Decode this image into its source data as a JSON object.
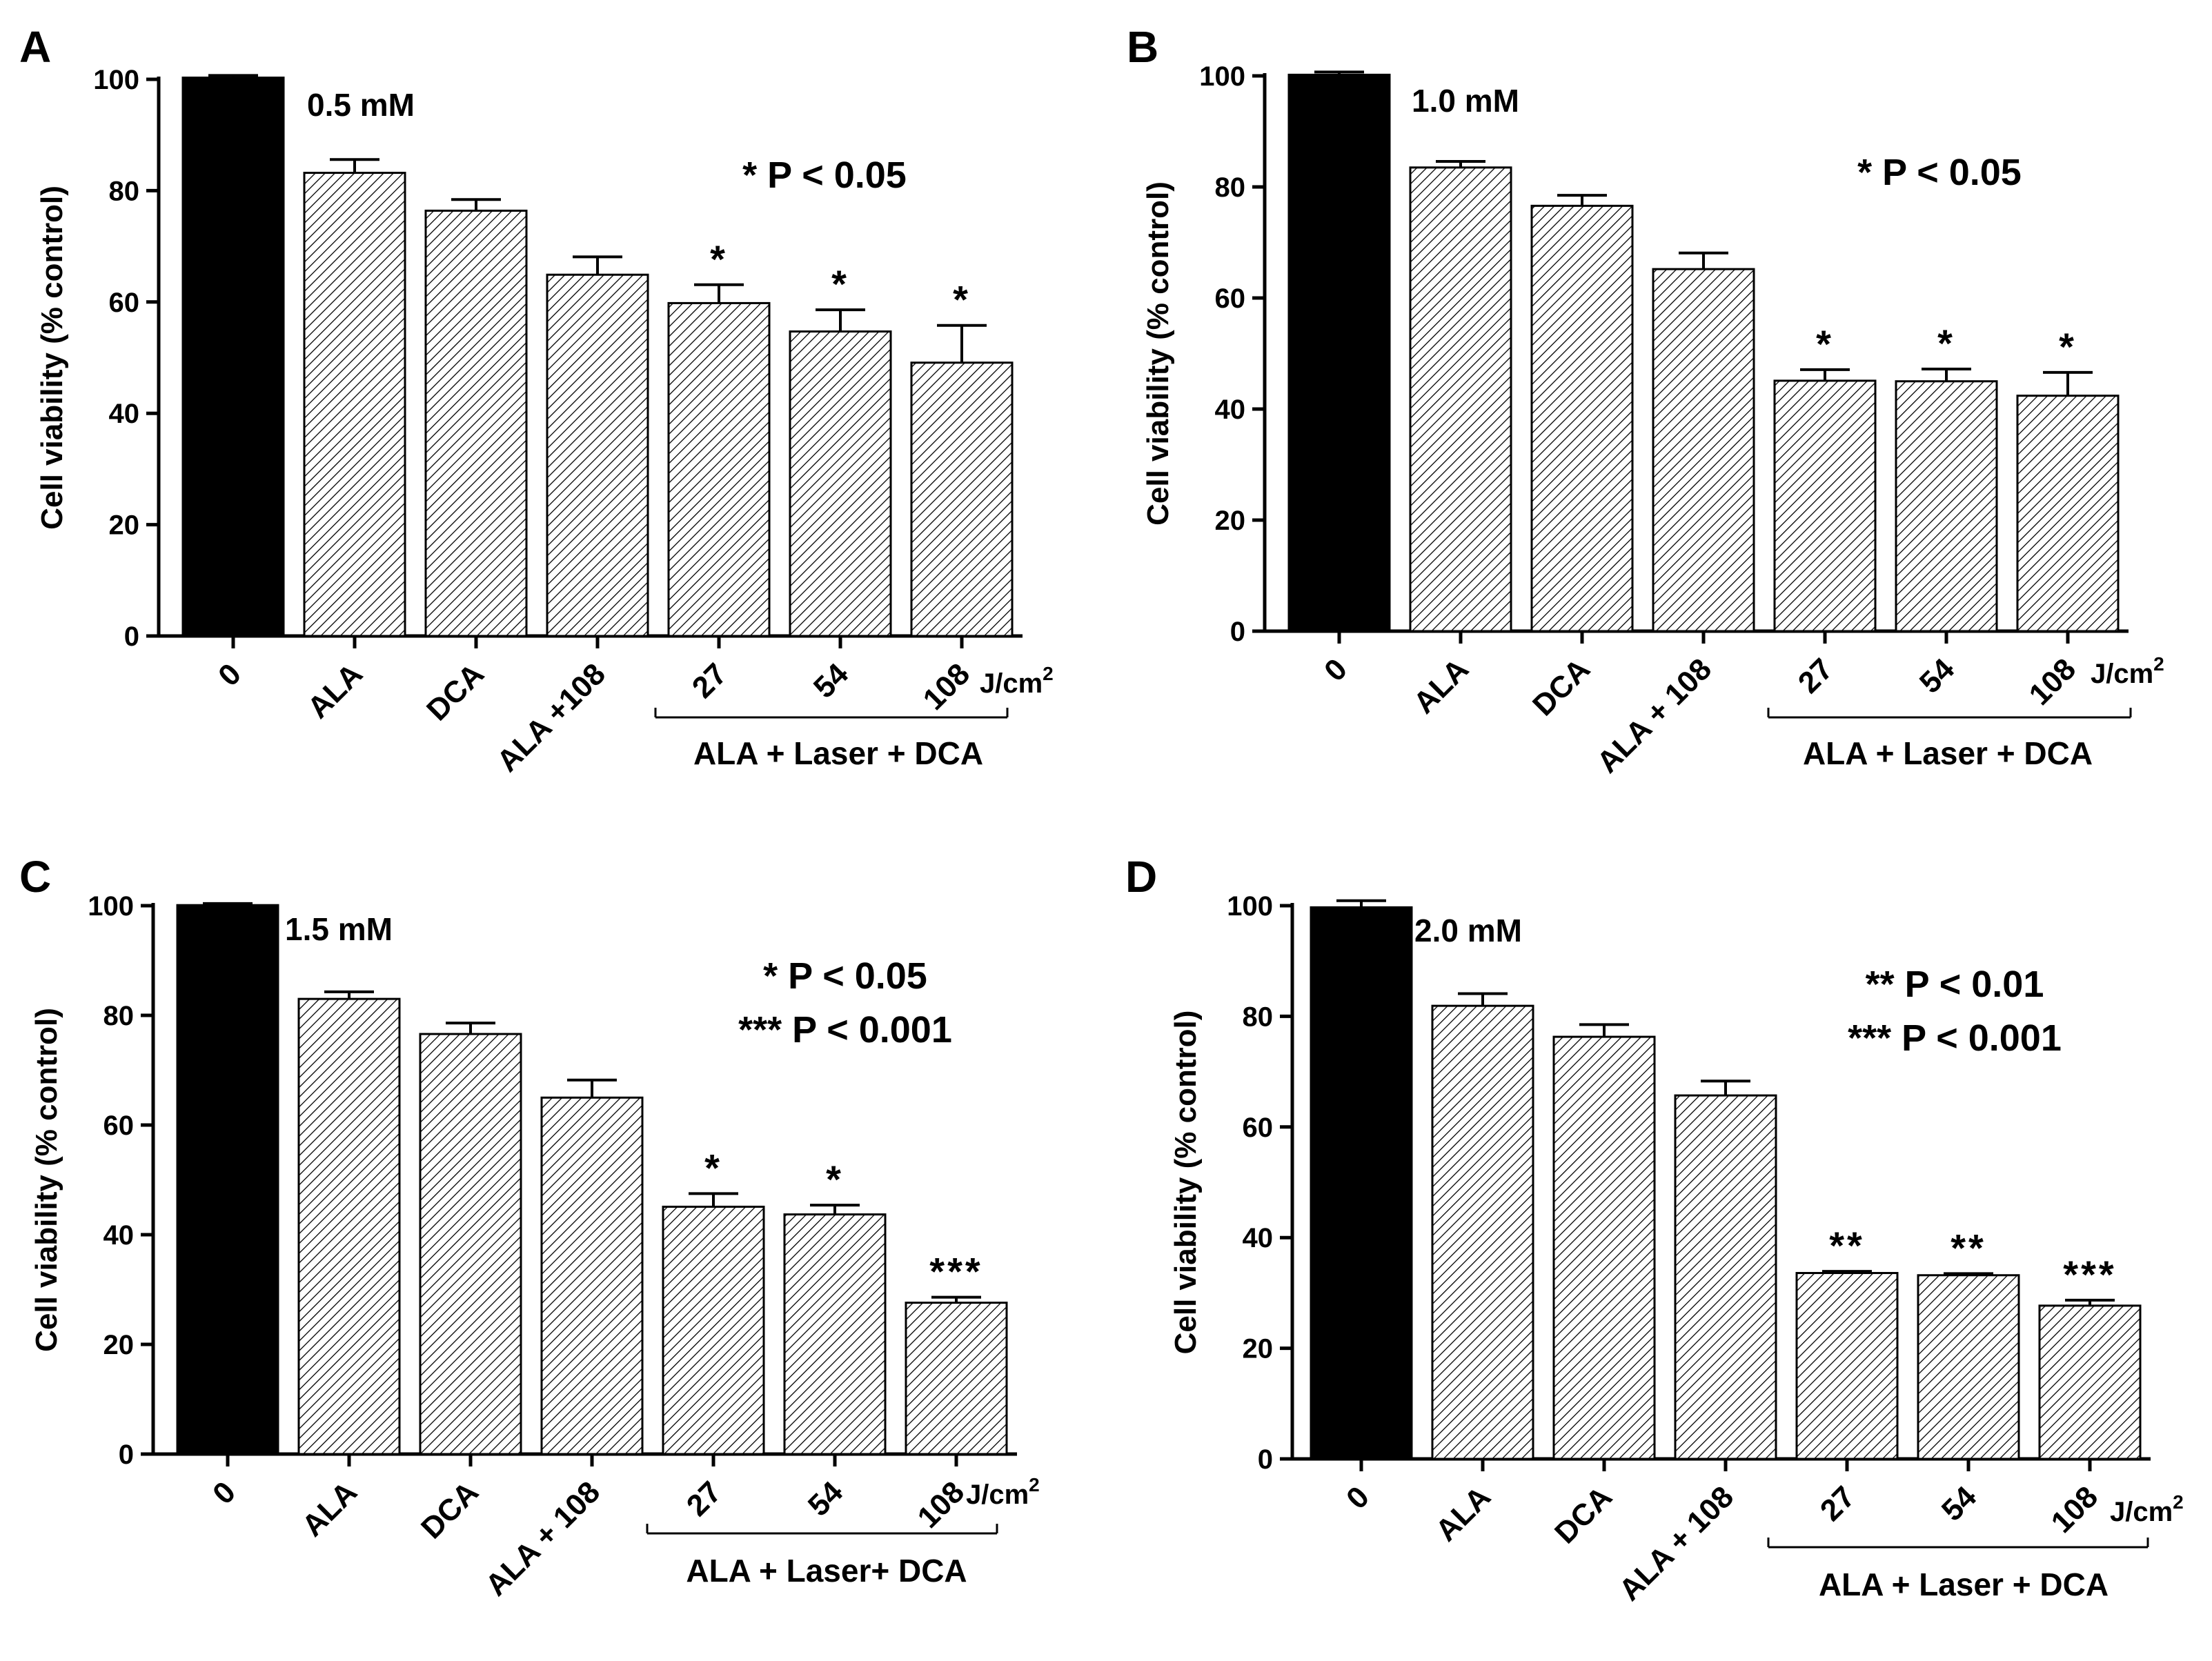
{
  "chart_data": [
    {
      "panel_label": "A",
      "type": "bar",
      "concentration": "0.5 mM",
      "ylabel": "Cell viability (% control)",
      "ylim": [
        0,
        100
      ],
      "yticks": [
        "0",
        "20",
        "40",
        "60",
        "80",
        "100"
      ],
      "categories": [
        "0",
        "ALA",
        "DCA",
        "ALA +108",
        "27",
        "54",
        "108"
      ],
      "values": [
        100.3,
        83.2,
        76.4,
        64.9,
        59.8,
        54.7,
        49.1
      ],
      "errors": [
        0.4,
        2.4,
        2.0,
        3.2,
        3.3,
        3.9,
        6.7
      ],
      "significance": [
        "",
        "",
        "",
        "",
        "*",
        "*",
        "*"
      ],
      "fills": [
        "solid",
        "hatch",
        "hatch",
        "hatch",
        "hatch",
        "hatch",
        "hatch"
      ],
      "unit_label": "J/cm",
      "unit_sup": "2",
      "group_label": "ALA + Laser + DCA",
      "pvalue_notes": [
        "* P < 0.05"
      ]
    },
    {
      "panel_label": "B",
      "type": "bar",
      "concentration": "1.0 mM",
      "ylabel": "Cell viability (% control)",
      "ylim": [
        0,
        100
      ],
      "yticks": [
        "0",
        "20",
        "40",
        "60",
        "80",
        "100"
      ],
      "categories": [
        "0",
        "ALA",
        "DCA",
        "ALA + 108",
        "27",
        "54",
        "108"
      ],
      "values": [
        100.2,
        83.5,
        76.6,
        65.2,
        45.1,
        45.0,
        42.4
      ],
      "errors": [
        0.5,
        1.1,
        1.9,
        2.9,
        2.0,
        2.2,
        4.2
      ],
      "significance": [
        "",
        "",
        "",
        "",
        "*",
        "*",
        "*"
      ],
      "fills": [
        "solid",
        "hatch",
        "hatch",
        "hatch",
        "hatch",
        "hatch",
        "hatch"
      ],
      "unit_label": "J/cm",
      "unit_sup": "2",
      "group_label": "ALA + Laser + DCA",
      "pvalue_notes": [
        "* P < 0.05"
      ]
    },
    {
      "panel_label": "C",
      "type": "bar",
      "concentration": "1.5 mM",
      "ylabel": "Cell viability (% control)",
      "ylim": [
        0,
        100
      ],
      "yticks": [
        "0",
        "20",
        "40",
        "60",
        "80",
        "100"
      ],
      "categories": [
        "0",
        "ALA",
        "DCA",
        "ALA + 108",
        "27",
        "54",
        "108"
      ],
      "values": [
        100.1,
        83.0,
        76.6,
        65.0,
        45.1,
        43.7,
        27.6
      ],
      "errors": [
        0.3,
        1.3,
        2.0,
        3.2,
        2.4,
        1.7,
        1.0
      ],
      "significance": [
        "",
        "",
        "",
        "",
        "*",
        "*",
        "***"
      ],
      "fills": [
        "solid",
        "hatch",
        "hatch",
        "hatch",
        "hatch",
        "hatch",
        "hatch"
      ],
      "unit_label": "J/cm",
      "unit_sup": "2",
      "group_label": "ALA + Laser+ DCA",
      "pvalue_notes": [
        "* P < 0.05",
        "*** P < 0.001"
      ]
    },
    {
      "panel_label": "D",
      "type": "bar",
      "concentration": "2.0 mM",
      "ylabel": "Cell viability (% control)",
      "ylim": [
        0,
        100
      ],
      "yticks": [
        "0",
        "20",
        "40",
        "60",
        "80",
        "100"
      ],
      "categories": [
        "0",
        "ALA",
        "DCA",
        "ALA + 108",
        "27",
        "54",
        "108"
      ],
      "values": [
        99.7,
        81.9,
        76.3,
        65.7,
        33.6,
        33.2,
        27.7
      ],
      "errors": [
        1.2,
        2.2,
        2.2,
        2.6,
        0.3,
        0.3,
        1.0
      ],
      "significance": [
        "",
        "",
        "",
        "",
        "**",
        "**",
        "***"
      ],
      "fills": [
        "solid",
        "hatch",
        "hatch",
        "hatch",
        "hatch",
        "hatch",
        "hatch"
      ],
      "unit_label": "J/cm",
      "unit_sup": "2",
      "group_label": "ALA + Laser + DCA",
      "pvalue_notes": [
        "** P < 0.01",
        "*** P < 0.001"
      ]
    }
  ],
  "colors": {
    "axis": "#000000",
    "solid_bar": "#000000",
    "hatch_bar_background": "#ffffff",
    "hatch_line": "#000000"
  }
}
